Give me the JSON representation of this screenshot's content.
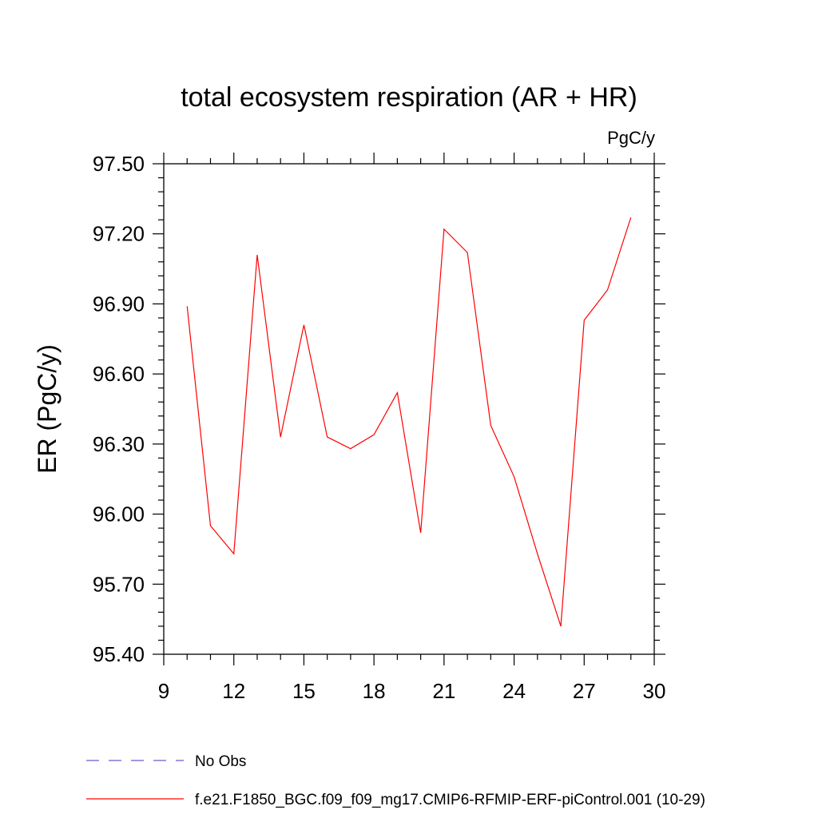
{
  "chart_data": {
    "type": "line",
    "title": "total ecosystem respiration (AR + HR)",
    "units": "PgC/y",
    "ylabel": "ER  (PgC/y)",
    "xlabel": "",
    "xlim": [
      9,
      30
    ],
    "ylim": [
      95.4,
      97.5
    ],
    "x_ticks": [
      9,
      12,
      15,
      18,
      21,
      24,
      27,
      30
    ],
    "y_ticks": [
      "95.40",
      "95.70",
      "96.00",
      "96.30",
      "96.60",
      "96.90",
      "97.20",
      "97.50"
    ],
    "series": [
      {
        "name": "f.e21.F1850_BGC.f09_f09_mg17.CMIP6-RFMIP-ERF-piControl.001 (10-29)",
        "color": "#ff0000",
        "style": "solid",
        "x": [
          10,
          11,
          12,
          13,
          14,
          15,
          16,
          17,
          18,
          19,
          20,
          21,
          22,
          23,
          24,
          25,
          26,
          27,
          28,
          29
        ],
        "y": [
          96.89,
          95.95,
          95.83,
          97.11,
          96.33,
          96.81,
          96.33,
          96.28,
          96.34,
          96.52,
          95.92,
          97.22,
          97.12,
          96.38,
          96.16,
          95.83,
          95.52,
          96.83,
          96.96,
          97.27
        ]
      }
    ],
    "legend": [
      {
        "label": "No Obs",
        "color": "#6a5acd",
        "style": "dashed"
      },
      {
        "label": "f.e21.F1850_BGC.f09_f09_mg17.CMIP6-RFMIP-ERF-piControl.001 (10-29)",
        "color": "#ff0000",
        "style": "solid"
      }
    ]
  }
}
